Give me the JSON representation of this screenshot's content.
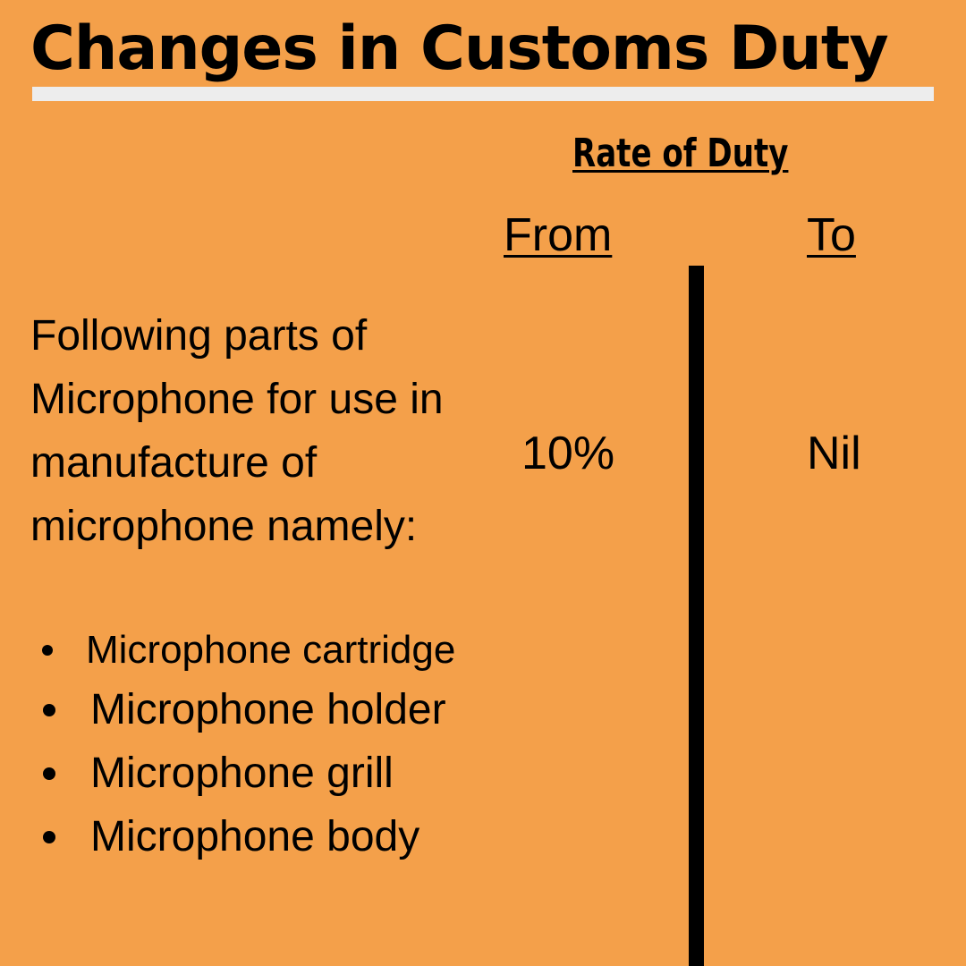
{
  "title": "Changes in Customs Duty",
  "rate_heading": "Rate of Duty",
  "columns": {
    "from": "From",
    "to": "To"
  },
  "description": "Following parts of Microphone for use in manufacture of microphone namely:",
  "values": {
    "from": "10%",
    "to": "Nil"
  },
  "parts": [
    "Microphone cartridge",
    "Microphone holder",
    "Microphone grill",
    "Microphone body"
  ],
  "colors": {
    "background": "#F4A04A",
    "text": "#000000",
    "title_rule": "#EDEDED"
  }
}
